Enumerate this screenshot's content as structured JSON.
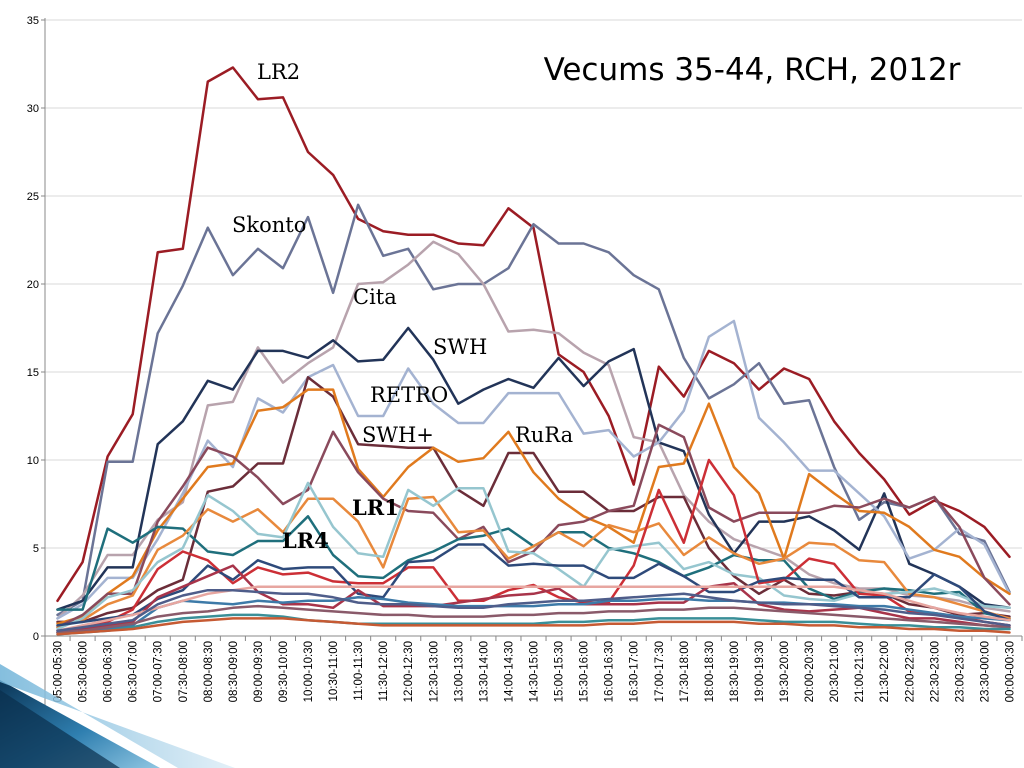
{
  "colors": {
    "axis": "#888888",
    "grid": "#d9d9d9",
    "wedge_dark": "#0d3a5c",
    "wedge_light": "#5aa6cf"
  },
  "chart_data": {
    "type": "line",
    "title": "Vecums 35-44, RCH, 2012r",
    "xlabel": "",
    "ylabel": "",
    "ylim": [
      0,
      35
    ],
    "yticks": [
      0,
      5,
      10,
      15,
      20,
      25,
      30,
      35
    ],
    "grid": "horizontal",
    "legend": "none",
    "x": [
      "05:00-05:30",
      "05:30-06:00",
      "06:00-06:30",
      "06:30-07:00",
      "07:00-07:30",
      "07:30-08:00",
      "08:00-08:30",
      "08:30-09:00",
      "09:00-09:30",
      "09:30-10:00",
      "10:00-10:30",
      "10:30-11:00",
      "11:00-11:30",
      "11:30-12:00",
      "12:00-12:30",
      "12:30-13:00",
      "13:00-13:30",
      "13:30-14:00",
      "14:00-14:30",
      "14:30-15:00",
      "15:00-15:30",
      "15:30-16:00",
      "16:00-16:30",
      "16:30-17:00",
      "17:00-17:30",
      "17:30-18:00",
      "18:00-18:30",
      "18:30-19:00",
      "19:00-19:30",
      "19:30-20:00",
      "20:00-20:30",
      "20:30-21:00",
      "21:00-21:30",
      "21:30-22:00",
      "22:00-22:30",
      "22:30-23:00",
      "23:00-23:30",
      "23:30-00:00",
      "00:00-00:30"
    ],
    "labels": [
      {
        "text": "LR2",
        "series": 0
      },
      {
        "text": "Skonto",
        "series": 1
      },
      {
        "text": "Cita",
        "series": 2
      },
      {
        "text": "SWH",
        "series": 3
      },
      {
        "text": "RETRO",
        "series": 4
      },
      {
        "text": "SWH+",
        "series": 5
      },
      {
        "text": "RuRa",
        "series": 6
      },
      {
        "text": "LR1",
        "series": 7
      },
      {
        "text": "LR4",
        "series": 8
      }
    ],
    "series": [
      {
        "color": "#9b1c24",
        "width": 2.5,
        "values": [
          2,
          4.2,
          10.2,
          12.6,
          21.8,
          22,
          31.5,
          32.3,
          30.5,
          30.6,
          27.5,
          26.2,
          23.7,
          23,
          22.8,
          22.8,
          22.3,
          22.2,
          24.3,
          23.2,
          16,
          15,
          12.5,
          8.6,
          15.3,
          13.6,
          16.2,
          15.5,
          14,
          15.2,
          14.6,
          12.2,
          10.4,
          8.9,
          6.9,
          7.7,
          7.1,
          6.2,
          4.5
        ]
      },
      {
        "color": "#6b7496",
        "width": 2.5,
        "values": [
          1.2,
          2,
          9.9,
          9.9,
          17.2,
          19.9,
          23.2,
          20.5,
          22,
          20.9,
          23.8,
          19.5,
          24.5,
          21.6,
          22,
          19.7,
          20,
          20,
          20.9,
          23.4,
          22.3,
          22.3,
          21.8,
          20.5,
          19.7,
          15.8,
          13.5,
          14.3,
          15.5,
          13.2,
          13.4,
          9.6,
          6.6,
          7.6,
          7.3,
          7.9,
          5.8,
          5.4,
          2.5
        ]
      },
      {
        "color": "#b8a3ad",
        "width": 2.5,
        "values": [
          1,
          2.3,
          4.6,
          4.6,
          6.6,
          7.6,
          13.1,
          13.3,
          16.4,
          14.4,
          15.5,
          16.4,
          20,
          20.1,
          21.1,
          22.4,
          21.7,
          20,
          17.3,
          17.4,
          17.2,
          16.1,
          15.4,
          11.3,
          11,
          8,
          6.5,
          5.5,
          5,
          4.5,
          3.5,
          3,
          2.7,
          2.7,
          2.3,
          2.2,
          2,
          1.6,
          1.4
        ]
      },
      {
        "color": "#223458",
        "width": 2.5,
        "values": [
          1.5,
          2,
          3.9,
          3.9,
          10.9,
          12.2,
          14.5,
          14,
          16.2,
          16.2,
          15.8,
          16.8,
          15.6,
          15.7,
          17.5,
          15.7,
          13.2,
          14,
          14.6,
          14.1,
          15.8,
          14.2,
          15.6,
          16.3,
          11,
          10.5,
          6.9,
          4.7,
          6.5,
          6.5,
          6.8,
          6,
          4.9,
          8.1,
          4.1,
          3.5,
          2.8,
          1.8,
          1.6
        ]
      },
      {
        "color": "#a4b3d1",
        "width": 2.5,
        "values": [
          1,
          1.8,
          3.3,
          3.3,
          5.5,
          8.1,
          11.1,
          9.6,
          13.5,
          12.7,
          14.7,
          15.4,
          12.5,
          12.5,
          15.2,
          13.2,
          12.1,
          12.1,
          13.8,
          13.8,
          13.8,
          11.5,
          11.7,
          10.2,
          11,
          12.8,
          17,
          17.9,
          12.4,
          11,
          9.4,
          9.4,
          8.1,
          6.8,
          4.4,
          4.9,
          6.1,
          5.2,
          2.4
        ]
      },
      {
        "color": "#6b2d39",
        "width": 2.5,
        "values": [
          0.8,
          0.8,
          1.3,
          1.6,
          2.6,
          3.2,
          8.2,
          8.5,
          9.8,
          9.8,
          14.7,
          13.6,
          10.9,
          10.8,
          10.7,
          10.7,
          8.3,
          7.4,
          10.4,
          10.4,
          8.2,
          8.2,
          7.1,
          7.1,
          7.9,
          7.9,
          5,
          3.4,
          2.4,
          3.2,
          2.4,
          2.3,
          2.5,
          2.4,
          1.8,
          1.6,
          1.2,
          1.3,
          1.1
        ]
      },
      {
        "color": "#e07a1e",
        "width": 2.5,
        "values": [
          0.7,
          1.1,
          2.4,
          3.4,
          6,
          7.8,
          9.6,
          9.8,
          12.8,
          13,
          14,
          14,
          9.5,
          7.9,
          9.6,
          10.7,
          9.9,
          10.1,
          11.6,
          9.3,
          7.8,
          6.8,
          6.2,
          5.3,
          9.6,
          9.8,
          13.2,
          9.6,
          8.1,
          4.4,
          9.2,
          8.1,
          7.1,
          7,
          6.2,
          4.9,
          4.5,
          3.3,
          2.4
        ]
      },
      {
        "color": "#8a4a5c",
        "width": 2.5,
        "values": [
          0.5,
          1.2,
          2.4,
          2.4,
          6.5,
          8.5,
          10.7,
          10.2,
          9,
          7.5,
          8.3,
          11.6,
          9.3,
          7.8,
          7.1,
          7,
          5.5,
          6.2,
          4.2,
          4.8,
          6.3,
          6.5,
          7.1,
          7.4,
          12,
          11.3,
          7.3,
          6.5,
          7,
          7,
          7,
          7.4,
          7.3,
          7.8,
          7.3,
          7.9,
          6.2,
          3.3,
          1.8
        ]
      },
      {
        "color": "#1f6f7c",
        "width": 2.5,
        "values": [
          1.5,
          1.5,
          6.1,
          5.3,
          6.2,
          6.1,
          4.8,
          4.6,
          5.4,
          5.4,
          6.8,
          4.6,
          3.4,
          3.3,
          4.3,
          4.8,
          5.5,
          5.7,
          6.1,
          5.1,
          5.9,
          5.9,
          5,
          4.7,
          4.2,
          3.4,
          3.9,
          4.6,
          4.3,
          4.3,
          2.7,
          2.1,
          2.5,
          2.7,
          2.6,
          2.4,
          2.5,
          1.3,
          1
        ]
      },
      {
        "color": "#e8893c",
        "width": 2.5,
        "values": [
          0.5,
          0.9,
          1.8,
          2.3,
          4.9,
          5.7,
          7.2,
          6.5,
          7.2,
          5.9,
          7.8,
          7.8,
          6.5,
          3.9,
          7.8,
          7.9,
          5.9,
          6,
          4.4,
          5.1,
          5.9,
          5.1,
          6.3,
          5.9,
          6.4,
          4.6,
          5.6,
          4.7,
          4.1,
          4.4,
          5.3,
          5.2,
          4.3,
          4.2,
          2.4,
          2.2,
          1.8,
          1.4,
          1
        ]
      },
      {
        "color": "#96c6cf",
        "width": 2.5,
        "values": [
          0.4,
          1,
          2.2,
          2.6,
          4.2,
          5,
          8,
          7.1,
          5.8,
          5.6,
          8.7,
          6.2,
          4.7,
          4.5,
          8.3,
          7.4,
          8.4,
          8.4,
          4.8,
          4.7,
          3.8,
          2.8,
          4.9,
          5.1,
          5.3,
          3.8,
          4.2,
          3.5,
          3.3,
          2.3,
          2.1,
          2,
          2.4,
          2.4,
          2.5,
          2.7,
          2.3,
          1.7,
          1.6
        ]
      },
      {
        "color": "#cc2f36",
        "width": 2.5,
        "values": [
          0.3,
          0.5,
          0.8,
          1.5,
          3.8,
          4.8,
          4.3,
          3,
          3.9,
          3.5,
          3.6,
          3.1,
          3,
          3,
          3.9,
          3.9,
          2,
          2,
          2.6,
          2.9,
          2.2,
          1.9,
          1.9,
          4,
          8.3,
          5.3,
          10,
          8,
          3,
          3.2,
          4.4,
          4.1,
          2.4,
          2.3,
          1.4,
          1.3,
          1.1,
          0.8,
          0.6
        ]
      },
      {
        "color": "#2e4a7a",
        "width": 2.5,
        "values": [
          0.6,
          0.8,
          1,
          1.2,
          2.1,
          2.6,
          4,
          3.2,
          4.3,
          3.8,
          3.9,
          3.9,
          2.4,
          2.2,
          4.2,
          4.3,
          5.2,
          5.2,
          4,
          4.1,
          4,
          4,
          3.3,
          3.3,
          4.1,
          3.4,
          2.5,
          2.5,
          3.1,
          3.3,
          3.2,
          3.2,
          2.2,
          2.2,
          2.2,
          3.5,
          2.8,
          1.4,
          0.9
        ]
      },
      {
        "color": "#a8344a",
        "width": 2.5,
        "values": [
          0.2,
          0.4,
          0.6,
          0.8,
          2.2,
          2.8,
          3.4,
          4,
          2.5,
          1.8,
          1.8,
          1.6,
          2.6,
          1.7,
          1.7,
          1.7,
          1.9,
          2.1,
          2.3,
          2.4,
          2.7,
          1.8,
          1.8,
          1.8,
          1.9,
          1.9,
          2.8,
          3,
          1.8,
          1.5,
          1.4,
          1.5,
          1.6,
          1.3,
          1,
          1,
          0.8,
          0.6,
          0.5
        ]
      },
      {
        "color": "#3d7aa8",
        "width": 2.5,
        "values": [
          0.2,
          0.3,
          0.4,
          0.6,
          1.6,
          2,
          1.9,
          1.8,
          2,
          1.9,
          2,
          2,
          2.2,
          2.1,
          1.9,
          1.8,
          1.7,
          1.7,
          1.7,
          1.7,
          1.8,
          1.8,
          2,
          2,
          2.1,
          2.1,
          2,
          2,
          1.9,
          1.9,
          1.8,
          1.8,
          1.7,
          1.7,
          1.5,
          1.3,
          1.1,
          1,
          0.9
        ]
      },
      {
        "color": "#e7a6a0",
        "width": 2.5,
        "values": [
          0.3,
          0.6,
          0.9,
          1.2,
          1.6,
          2,
          2.4,
          2.6,
          2.8,
          2.8,
          2.8,
          2.8,
          2.8,
          2.8,
          2.8,
          2.8,
          2.8,
          2.8,
          2.8,
          2.8,
          2.8,
          2.8,
          2.8,
          2.8,
          2.8,
          2.8,
          2.8,
          2.8,
          2.8,
          2.8,
          2.8,
          2.8,
          2.6,
          2.4,
          2,
          1.6,
          1.3,
          1.1,
          0.9
        ]
      },
      {
        "color": "#8a5a6a",
        "width": 2.5,
        "values": [
          0.2,
          0.3,
          0.5,
          0.7,
          1.1,
          1.3,
          1.4,
          1.6,
          1.7,
          1.6,
          1.5,
          1.4,
          1.3,
          1.2,
          1.2,
          1.1,
          1.1,
          1.1,
          1.2,
          1.2,
          1.3,
          1.3,
          1.4,
          1.4,
          1.5,
          1.5,
          1.6,
          1.6,
          1.5,
          1.4,
          1.3,
          1.2,
          1.1,
          1,
          0.9,
          0.8,
          0.7,
          0.6,
          0.5
        ]
      },
      {
        "color": "#3a8f98",
        "width": 2.5,
        "values": [
          0.1,
          0.2,
          0.3,
          0.5,
          0.8,
          1,
          1.1,
          1.2,
          1.2,
          1.1,
          0.9,
          0.8,
          0.7,
          0.7,
          0.7,
          0.7,
          0.7,
          0.7,
          0.7,
          0.7,
          0.8,
          0.8,
          0.9,
          0.9,
          1,
          1,
          1,
          1,
          0.9,
          0.8,
          0.8,
          0.8,
          0.7,
          0.6,
          0.6,
          0.5,
          0.5,
          0.4,
          0.4
        ]
      },
      {
        "color": "#c65a33",
        "width": 2.5,
        "values": [
          0.1,
          0.2,
          0.3,
          0.4,
          0.6,
          0.8,
          0.9,
          1,
          1,
          1,
          0.9,
          0.8,
          0.7,
          0.6,
          0.6,
          0.6,
          0.6,
          0.6,
          0.6,
          0.6,
          0.6,
          0.6,
          0.7,
          0.7,
          0.8,
          0.8,
          0.8,
          0.8,
          0.7,
          0.7,
          0.6,
          0.6,
          0.5,
          0.5,
          0.4,
          0.4,
          0.3,
          0.3,
          0.2
        ]
      },
      {
        "color": "#4f5d8a",
        "width": 2.5,
        "values": [
          0.3,
          0.5,
          0.7,
          0.9,
          1.8,
          2.3,
          2.6,
          2.6,
          2.5,
          2.4,
          2.4,
          2.2,
          1.9,
          1.8,
          1.8,
          1.7,
          1.6,
          1.6,
          1.8,
          1.9,
          2,
          2,
          2.1,
          2.2,
          2.3,
          2.4,
          2.2,
          2,
          1.9,
          1.8,
          1.8,
          1.7,
          1.6,
          1.5,
          1.3,
          1.2,
          1,
          0.8,
          0.6
        ]
      }
    ]
  }
}
